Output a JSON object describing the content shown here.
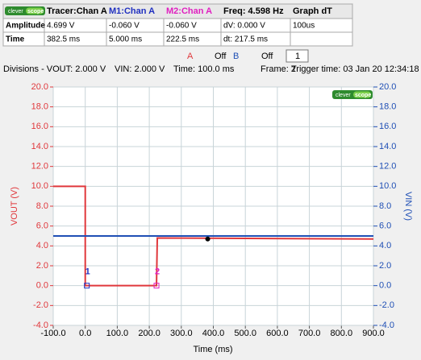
{
  "logo": {
    "left": "clever",
    "right": "scope"
  },
  "table": {
    "header": [
      "Tracer:Chan A",
      "M1:Chan A",
      "M2:Chan A",
      "Freq: 4.598 Hz",
      "Graph dT"
    ],
    "rows": [
      [
        "Amplitude",
        "4.699 V",
        "-0.060 V",
        "-0.060 V",
        "dV: 0.000 V",
        "100us"
      ],
      [
        "Time",
        "382.5 ms",
        "5.000 ms",
        "222.5 ms",
        "dt: 217.5 ms"
      ]
    ]
  },
  "controls": {
    "a": "A",
    "a_state": "Off",
    "b": "B",
    "b_state": "Off",
    "frame_spin": "1"
  },
  "info": [
    "Divisions - VOUT: 2.000 V",
    "VIN: 2.000 V",
    "Time: 100.0 ms",
    "Frame: 2",
    "Trigger time: 03 Jan 20 12:34:18"
  ],
  "chart_data": {
    "type": "line",
    "xlabel": "Time (ms)",
    "ylabel": "VOUT (V)",
    "y2label": "VIN (V)",
    "x": [
      -100,
      0,
      0,
      222.5,
      225,
      900
    ],
    "series": [
      {
        "name": "VOUT",
        "color": "#e0383c",
        "values": [
          10,
          10,
          0,
          0,
          4.8,
          4.7
        ]
      },
      {
        "name": "VIN",
        "color": "#1f4fb5",
        "axis": "y2",
        "values": [
          5,
          5,
          5,
          5,
          5,
          5
        ]
      }
    ],
    "markers": [
      {
        "label": "1",
        "color": "#2030c0",
        "x": 5,
        "y": 0
      },
      {
        "label": "2",
        "color": "#e020c0",
        "x": 222.5,
        "y": 0
      }
    ],
    "tracer": {
      "x": 382.5,
      "y": 4.699
    },
    "xlim": [
      -100,
      900
    ],
    "xticks": [
      {
        "value": -100,
        "label": "-100.0"
      },
      {
        "value": 0,
        "label": "0.0"
      },
      {
        "value": 100,
        "label": "100.0"
      },
      {
        "value": 200,
        "label": "200.0"
      },
      {
        "value": 300,
        "label": "300.0"
      },
      {
        "value": 400,
        "label": "400.0"
      },
      {
        "value": 500,
        "label": "500.0"
      },
      {
        "value": 600,
        "label": "600.0"
      },
      {
        "value": 700,
        "label": "700.0"
      },
      {
        "value": 800,
        "label": "800.0"
      },
      {
        "value": 900,
        "label": "900.0"
      }
    ],
    "ylim": [
      -4,
      20
    ],
    "yticks": [
      {
        "value": -4,
        "label": "-4.0"
      },
      {
        "value": -2,
        "label": "-2.0"
      },
      {
        "value": 0,
        "label": "0.0"
      },
      {
        "value": 2,
        "label": "2.0"
      },
      {
        "value": 4,
        "label": "4.0"
      },
      {
        "value": 6,
        "label": "6.0"
      },
      {
        "value": 8,
        "label": "8.0"
      },
      {
        "value": 10,
        "label": "10.0"
      },
      {
        "value": 12,
        "label": "12.0"
      },
      {
        "value": 14,
        "label": "14.0"
      },
      {
        "value": 16,
        "label": "16.0"
      },
      {
        "value": 18,
        "label": "18.0"
      },
      {
        "value": 20,
        "label": "20.0"
      }
    ],
    "y2lim": [
      -4,
      20
    ],
    "y2ticks": [
      {
        "value": -4,
        "label": "-4.0"
      },
      {
        "value": -2,
        "label": "-2.0"
      },
      {
        "value": 0,
        "label": "0.0"
      },
      {
        "value": 2,
        "label": "2.0"
      },
      {
        "value": 4,
        "label": "4.0"
      },
      {
        "value": 6,
        "label": "6.0"
      },
      {
        "value": 8,
        "label": "8.0"
      },
      {
        "value": 10,
        "label": "10.0"
      },
      {
        "value": 12,
        "label": "12.0"
      },
      {
        "value": 14,
        "label": "14.0"
      },
      {
        "value": 16,
        "label": "16.0"
      },
      {
        "value": 18,
        "label": "18.0"
      },
      {
        "value": 20,
        "label": "20.0"
      }
    ],
    "grid": true
  }
}
